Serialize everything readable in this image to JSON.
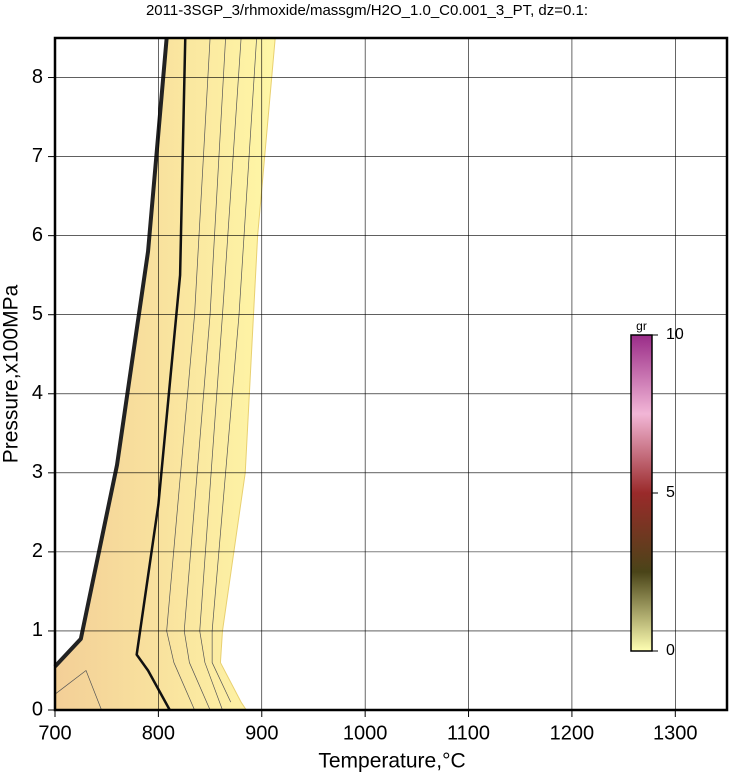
{
  "chart_data": {
    "type": "contour",
    "title": "2011-3SGP_3/rhmoxide/massgm/H2O_1.0_C0.001_3_PT, dz=0.1:",
    "xlabel": "Temperature,°C",
    "ylabel": "Pressure,x100MPa",
    "xlim": [
      700,
      1350
    ],
    "xticks": [
      700,
      800,
      900,
      1000,
      1100,
      1200,
      1300
    ],
    "ylim": [
      0,
      8.5
    ],
    "yticks": [
      0,
      1,
      2,
      3,
      4,
      5,
      6,
      7,
      8
    ],
    "grid": true,
    "field": {
      "x": [
        700,
        700,
        725,
        760,
        790,
        808,
        913,
        896,
        884,
        862,
        860,
        880,
        885
      ],
      "y": [
        0,
        0.55,
        0.9,
        3.1,
        5.8,
        8.5,
        8.5,
        6,
        3,
        1,
        0.6,
        0.1,
        0
      ],
      "colors": [
        "#f3cf97",
        "#fff7a6"
      ]
    },
    "series": [
      {
        "x": [
          700,
          725,
          760,
          790,
          808
        ],
        "y": [
          0.55,
          0.9,
          3.1,
          5.8,
          8.5
        ],
        "color": "#222222",
        "width": 4
      },
      {
        "x": [
          811,
          790,
          779,
          800,
          821,
          826
        ],
        "y": [
          0,
          0.5,
          0.7,
          2.6,
          5.5,
          8.5
        ],
        "color": "#111111",
        "width": 2.5
      },
      {
        "x": [
          835,
          815,
          808,
          835,
          850
        ],
        "y": [
          0,
          0.6,
          1,
          5,
          8.5
        ],
        "color": "#555555",
        "width": 0.7
      },
      {
        "x": [
          850,
          830,
          825,
          850,
          865
        ],
        "y": [
          0,
          0.6,
          1,
          5,
          8.5
        ],
        "color": "#555555",
        "width": 0.7
      },
      {
        "x": [
          862,
          845,
          840,
          862,
          880
        ],
        "y": [
          0,
          0.6,
          1,
          5,
          8.5
        ],
        "color": "#555555",
        "width": 0.7
      },
      {
        "x": [
          870,
          852,
          852,
          878,
          895
        ],
        "y": [
          0.1,
          0.6,
          1,
          5,
          8.5
        ],
        "color": "#555555",
        "width": 0.7
      },
      {
        "x": [
          700,
          730,
          745
        ],
        "y": [
          0.2,
          0.5,
          0
        ],
        "color": "#555555",
        "width": 0.7
      }
    ],
    "colorbar": {
      "label": "gr",
      "lim": [
        0,
        10
      ],
      "ticks": [
        0,
        5,
        10
      ],
      "colors": [
        "#ffffb3",
        "#4a4418",
        "#9a2a2a",
        "#f2b6d6",
        "#9a2c88"
      ]
    }
  }
}
